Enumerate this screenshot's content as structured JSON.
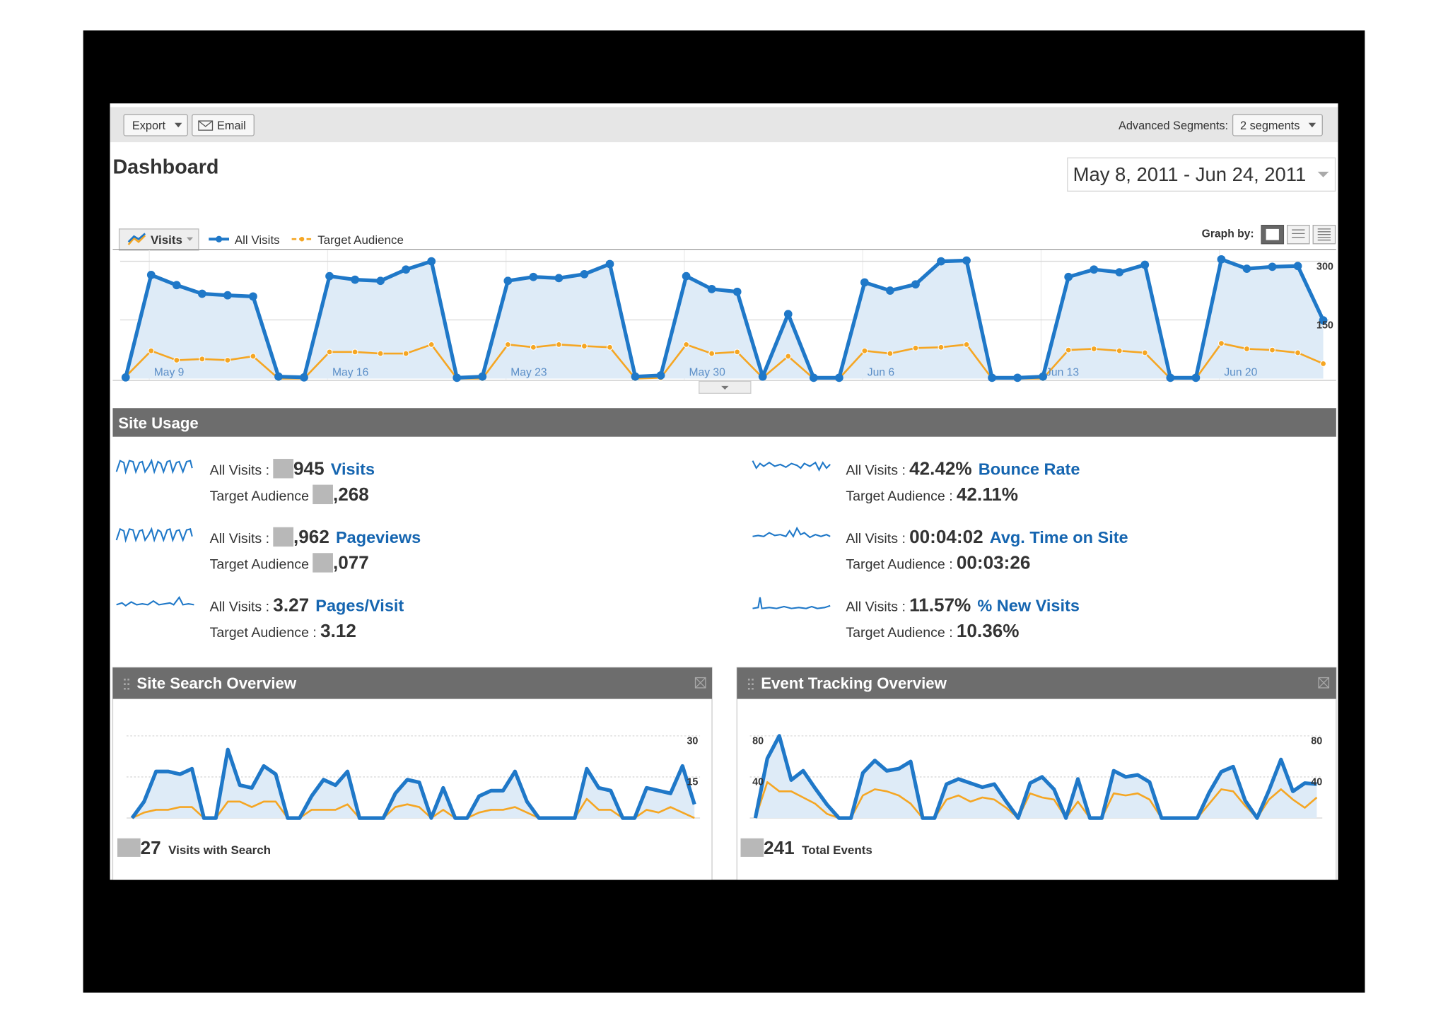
{
  "toolbar": {
    "export": "Export",
    "email": "Email",
    "segments_label": "Advanced Segments:",
    "segments": "2 segments"
  },
  "title": "Dashboard",
  "date_range": "May 8, 2011 - Jun 24, 2011",
  "chart_data": [
    {
      "type": "line",
      "metric": "Visits",
      "graph_by": "Graph by:",
      "categories": [
        null,
        "May 9",
        null,
        null,
        null,
        null,
        null,
        null,
        "May 16",
        null,
        null,
        null,
        null,
        null,
        null,
        "May 23",
        null,
        null,
        null,
        null,
        null,
        null,
        "May 30",
        null,
        null,
        null,
        null,
        null,
        null,
        "Jun 6",
        null,
        null,
        null,
        null,
        null,
        null,
        "Jun 13",
        null,
        null,
        null,
        null,
        null,
        null,
        "Jun 20",
        null,
        null,
        null,
        null
      ],
      "series": [
        {
          "name": "All Visits",
          "color": "#1f78c8",
          "area": true,
          "values": [
            3,
            265,
            239,
            217,
            213,
            210,
            5,
            3,
            262,
            253,
            250,
            279,
            300,
            2,
            5,
            250,
            260,
            257,
            267,
            293,
            5,
            8,
            262,
            229,
            222,
            5,
            165,
            2,
            2,
            246,
            225,
            241,
            300,
            302,
            2,
            2,
            5,
            260,
            279,
            272,
            291,
            2,
            2,
            305,
            281,
            286,
            288,
            149
          ]
        },
        {
          "name": "Target Audience",
          "color": "#f5a623",
          "values": [
            5,
            71,
            47,
            50,
            47,
            57,
            0,
            0,
            68,
            68,
            64,
            64,
            87,
            0,
            0,
            87,
            80,
            87,
            83,
            80,
            0,
            2,
            87,
            64,
            68,
            2,
            57,
            0,
            0,
            71,
            64,
            78,
            80,
            87,
            0,
            0,
            0,
            73,
            76,
            71,
            66,
            0,
            0,
            90,
            76,
            73,
            66,
            38
          ]
        }
      ],
      "area_color": "#deebf7",
      "ylim": [
        0,
        300
      ],
      "yticks": [
        150,
        300
      ],
      "ytick_side": "right",
      "grid": true
    },
    {
      "type": "line",
      "title": "Site Search Overview",
      "series": [
        {
          "color": "#1f78c8",
          "area": true,
          "values": [
            0,
            6,
            17,
            17,
            16,
            18,
            0,
            0,
            25,
            12,
            11,
            19,
            16,
            0,
            0,
            8,
            14,
            12,
            17,
            0,
            0,
            0,
            9,
            14,
            13,
            0,
            11,
            0,
            0,
            8,
            10,
            10,
            17,
            6,
            0,
            0,
            0,
            0,
            18,
            11,
            10,
            0,
            0,
            11,
            10,
            9,
            19,
            5
          ]
        },
        {
          "color": "#f5a623",
          "values": [
            0,
            2,
            3,
            3,
            4,
            4,
            0,
            0,
            6,
            6,
            4,
            6,
            6,
            0,
            0,
            3,
            3,
            3,
            5,
            0,
            0,
            0,
            4,
            5,
            4,
            0,
            3,
            0,
            0,
            2,
            3,
            3,
            4,
            2,
            0,
            0,
            0,
            0,
            7,
            3,
            3,
            0,
            0,
            3,
            2,
            4,
            2,
            0
          ]
        }
      ],
      "area_color": "#deebf7",
      "ylim": [
        0,
        30
      ],
      "yticks": [
        15,
        30
      ],
      "ytick_side": "right",
      "grid": true,
      "summary": {
        "value": "27",
        "masked": true,
        "label": "Visits with Search"
      }
    },
    {
      "type": "line",
      "title": "Event Tracking Overview",
      "series": [
        {
          "color": "#1f78c8",
          "area": true,
          "values": [
            0,
            58,
            80,
            37,
            46,
            29,
            13,
            0,
            0,
            44,
            56,
            46,
            48,
            55,
            0,
            0,
            33,
            38,
            34,
            30,
            33,
            16,
            0,
            34,
            40,
            28,
            0,
            38,
            0,
            0,
            46,
            40,
            42,
            35,
            0,
            0,
            0,
            0,
            25,
            45,
            50,
            17,
            0,
            27,
            57,
            26,
            34,
            33
          ]
        },
        {
          "color": "#f5a623",
          "values": [
            0,
            35,
            26,
            26,
            20,
            14,
            4,
            0,
            0,
            22,
            28,
            26,
            22,
            14,
            0,
            0,
            18,
            22,
            16,
            20,
            18,
            10,
            0,
            24,
            20,
            18,
            0,
            16,
            0,
            0,
            24,
            22,
            24,
            18,
            0,
            0,
            0,
            0,
            14,
            28,
            26,
            12,
            0,
            18,
            28,
            18,
            10,
            20
          ]
        }
      ],
      "area_color": "#deebf7",
      "ylim": [
        0,
        80
      ],
      "yticks": [
        40,
        80
      ],
      "ytick_side": "both",
      "grid": true,
      "summary": {
        "value": "241",
        "masked": true,
        "label": "Total Events"
      }
    }
  ],
  "site_usage": {
    "title": "Site Usage",
    "metrics": [
      {
        "all_label": "All Visits :",
        "all_value": "945",
        "name": "Visits",
        "target_label": "Target Audience",
        "target_value": ",268",
        "masked": true
      },
      {
        "all_label": "All Visits :",
        "all_value": ",962",
        "name": "Pageviews",
        "target_label": "Target Audience",
        "target_value": ",077",
        "masked": true
      },
      {
        "all_label": "All Visits :",
        "all_value": "3.27",
        "name": "Pages/Visit",
        "target_label": "Target Audience :",
        "target_value": "3.12",
        "masked": false
      },
      {
        "all_label": "All Visits :",
        "all_value": "42.42%",
        "name": "Bounce Rate",
        "target_label": "Target Audience :",
        "target_value": "42.11%",
        "masked": false
      },
      {
        "all_label": "All Visits :",
        "all_value": "00:04:02",
        "name": "Avg. Time on Site",
        "target_label": "Target Audience :",
        "target_value": "00:03:26",
        "masked": false
      },
      {
        "all_label": "All Visits :",
        "all_value": "11.57%",
        "name": "% New Visits",
        "target_label": "Target Audience :",
        "target_value": "10.36%",
        "masked": false
      }
    ]
  }
}
